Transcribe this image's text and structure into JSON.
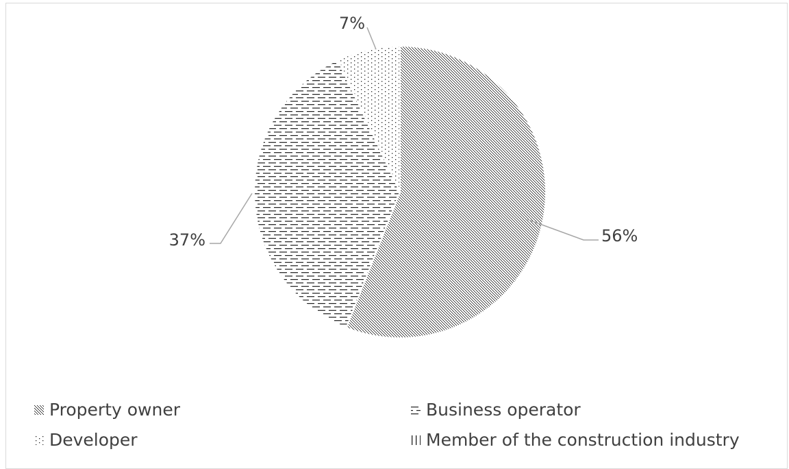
{
  "chart_data": {
    "type": "pie",
    "title": "",
    "slices": [
      {
        "name": "Property owner",
        "value": 56,
        "label": "56%",
        "pattern": "diagonal-dots"
      },
      {
        "name": "Business operator",
        "value": 37,
        "label": "37%",
        "pattern": "horizontal-dashes"
      },
      {
        "name": "Developer",
        "value": 7,
        "label": "7%",
        "pattern": "sparse-dots"
      },
      {
        "name": "Member of the construction industry",
        "value": 0,
        "label": "",
        "pattern": "vertical-lines"
      }
    ],
    "legend": {
      "placement": "bottom",
      "entries": [
        "Property owner",
        "Business operator",
        "Developer",
        "Member of the construction industry"
      ]
    },
    "colors": {
      "ink": "#404040",
      "leader": "#a6a6a6",
      "border": "#d9d9d9"
    }
  }
}
